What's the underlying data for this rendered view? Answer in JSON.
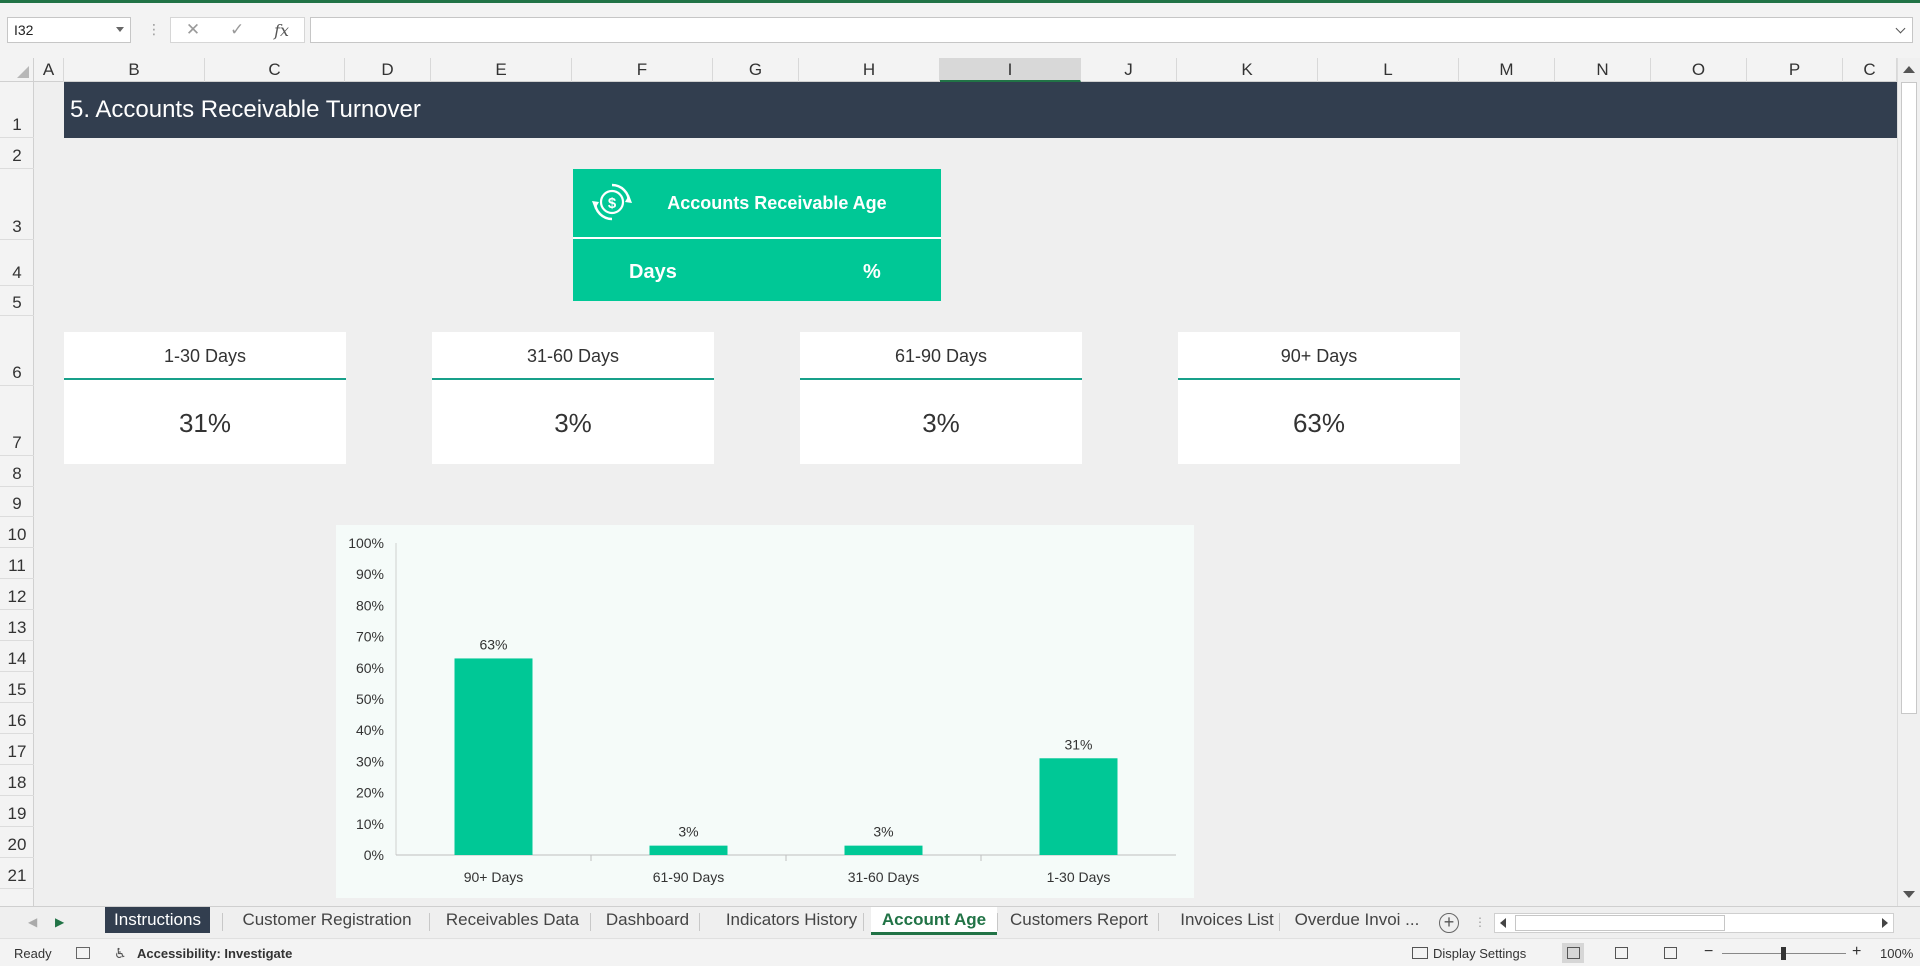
{
  "formula_bar": {
    "name_box": "I32",
    "fx_label": "fx",
    "cancel_glyph": "✕",
    "enter_glyph": "✓",
    "dots": "⋮"
  },
  "columns": [
    "A",
    "B",
    "C",
    "D",
    "E",
    "F",
    "G",
    "H",
    "I",
    "J",
    "K",
    "L",
    "M",
    "N",
    "O",
    "P",
    "C"
  ],
  "selected_column": "I",
  "rows": [
    "1",
    "2",
    "3",
    "4",
    "5",
    "6",
    "7",
    "8",
    "9",
    "10",
    "11",
    "12",
    "13",
    "14",
    "15",
    "16",
    "17",
    "18",
    "19",
    "20",
    "21"
  ],
  "sheet": {
    "title": "5. Accounts Receivable Turnover",
    "ar_box": {
      "title": "Accounts Receivable Age",
      "days_label": "Days",
      "pct_label": "%",
      "icon": "dollar-cycle-icon"
    },
    "cards": [
      {
        "label": "1-30 Days",
        "value": "31%"
      },
      {
        "label": "31-60 Days",
        "value": "3%"
      },
      {
        "label": "61-90 Days",
        "value": "3%"
      },
      {
        "label": "90+ Days",
        "value": "63%"
      }
    ]
  },
  "chart_data": {
    "type": "bar",
    "categories": [
      "90+ Days",
      "61-90 Days",
      "31-60 Days",
      "1-30 Days"
    ],
    "values": [
      0.63,
      0.03,
      0.03,
      0.31
    ],
    "data_labels": [
      "63%",
      "3%",
      "3%",
      "31%"
    ],
    "y_ticks": [
      "0%",
      "10%",
      "20%",
      "30%",
      "40%",
      "50%",
      "60%",
      "70%",
      "80%",
      "90%",
      "100%"
    ],
    "ylim": [
      0,
      1
    ],
    "grid": false,
    "color": "#00c896",
    "title": "",
    "xlabel": "",
    "ylabel": ""
  },
  "tabs": [
    {
      "label": "Instructions",
      "style": "instructions"
    },
    {
      "label": "Customer Registration",
      "style": ""
    },
    {
      "label": "Receivables Data",
      "style": ""
    },
    {
      "label": "Dashboard",
      "style": ""
    },
    {
      "label": "Indicators History",
      "style": ""
    },
    {
      "label": "Account Age",
      "style": "active"
    },
    {
      "label": "Customers Report",
      "style": ""
    },
    {
      "label": "Invoices List",
      "style": ""
    },
    {
      "label": "Overdue Invoi ...",
      "style": ""
    }
  ],
  "status": {
    "ready": "Ready",
    "accessibility": "Accessibility: Investigate",
    "display_settings": "Display Settings",
    "zoom": "100%"
  },
  "colors": {
    "accent": "#217346",
    "title_band": "#323e4f",
    "teal": "#00c896",
    "card_rule": "#18a08a"
  }
}
